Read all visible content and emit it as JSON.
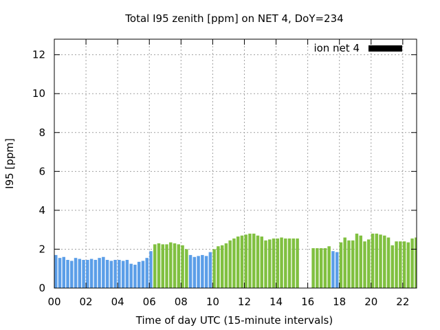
{
  "chart_data": {
    "type": "bar",
    "title": "Total I95 zenith [ppm] on NET 4, DoY=234",
    "xlabel": "Time of day UTC (15-minute intervals)",
    "ylabel": "I95 [ppm]",
    "xlim": [
      0,
      22.75
    ],
    "ylim": [
      0,
      12.8
    ],
    "x_ticks": [
      "00",
      "02",
      "04",
      "06",
      "08",
      "10",
      "12",
      "14",
      "16",
      "18",
      "20",
      "22"
    ],
    "y_ticks": [
      "0",
      "2",
      "4",
      "6",
      "8",
      "10",
      "12"
    ],
    "grid": true,
    "legend": {
      "label": "ion net 4",
      "color": "#000000",
      "position": "top-right"
    },
    "colors": {
      "blue": "#5b9ee8",
      "green": "#80c040"
    },
    "interval_hours": 0.25,
    "bars": [
      {
        "x": 0.0,
        "y": 1.7,
        "c": "blue"
      },
      {
        "x": 0.25,
        "y": 1.55,
        "c": "blue"
      },
      {
        "x": 0.5,
        "y": 1.6,
        "c": "blue"
      },
      {
        "x": 0.75,
        "y": 1.45,
        "c": "blue"
      },
      {
        "x": 1.0,
        "y": 1.4,
        "c": "blue"
      },
      {
        "x": 1.25,
        "y": 1.55,
        "c": "blue"
      },
      {
        "x": 1.5,
        "y": 1.5,
        "c": "blue"
      },
      {
        "x": 1.75,
        "y": 1.45,
        "c": "blue"
      },
      {
        "x": 2.0,
        "y": 1.45,
        "c": "blue"
      },
      {
        "x": 2.25,
        "y": 1.5,
        "c": "blue"
      },
      {
        "x": 2.5,
        "y": 1.45,
        "c": "blue"
      },
      {
        "x": 2.75,
        "y": 1.55,
        "c": "blue"
      },
      {
        "x": 3.0,
        "y": 1.6,
        "c": "blue"
      },
      {
        "x": 3.25,
        "y": 1.45,
        "c": "blue"
      },
      {
        "x": 3.5,
        "y": 1.4,
        "c": "blue"
      },
      {
        "x": 3.75,
        "y": 1.45,
        "c": "blue"
      },
      {
        "x": 4.0,
        "y": 1.45,
        "c": "blue"
      },
      {
        "x": 4.25,
        "y": 1.4,
        "c": "blue"
      },
      {
        "x": 4.5,
        "y": 1.45,
        "c": "blue"
      },
      {
        "x": 4.75,
        "y": 1.25,
        "c": "blue"
      },
      {
        "x": 5.0,
        "y": 1.2,
        "c": "blue"
      },
      {
        "x": 5.25,
        "y": 1.35,
        "c": "blue"
      },
      {
        "x": 5.5,
        "y": 1.4,
        "c": "blue"
      },
      {
        "x": 5.75,
        "y": 1.55,
        "c": "blue"
      },
      {
        "x": 6.0,
        "y": 1.9,
        "c": "blue"
      },
      {
        "x": 6.25,
        "y": 2.25,
        "c": "green"
      },
      {
        "x": 6.5,
        "y": 2.3,
        "c": "green"
      },
      {
        "x": 6.75,
        "y": 2.25,
        "c": "green"
      },
      {
        "x": 7.0,
        "y": 2.25,
        "c": "green"
      },
      {
        "x": 7.25,
        "y": 2.35,
        "c": "green"
      },
      {
        "x": 7.5,
        "y": 2.3,
        "c": "green"
      },
      {
        "x": 7.75,
        "y": 2.25,
        "c": "green"
      },
      {
        "x": 8.0,
        "y": 2.2,
        "c": "green"
      },
      {
        "x": 8.25,
        "y": 2.0,
        "c": "green"
      },
      {
        "x": 8.5,
        "y": 1.7,
        "c": "blue"
      },
      {
        "x": 8.75,
        "y": 1.6,
        "c": "blue"
      },
      {
        "x": 9.0,
        "y": 1.65,
        "c": "blue"
      },
      {
        "x": 9.25,
        "y": 1.7,
        "c": "blue"
      },
      {
        "x": 9.5,
        "y": 1.65,
        "c": "blue"
      },
      {
        "x": 9.75,
        "y": 1.85,
        "c": "blue"
      },
      {
        "x": 10.0,
        "y": 2.0,
        "c": "green"
      },
      {
        "x": 10.25,
        "y": 2.15,
        "c": "green"
      },
      {
        "x": 10.5,
        "y": 2.2,
        "c": "green"
      },
      {
        "x": 10.75,
        "y": 2.3,
        "c": "green"
      },
      {
        "x": 11.0,
        "y": 2.45,
        "c": "green"
      },
      {
        "x": 11.25,
        "y": 2.55,
        "c": "green"
      },
      {
        "x": 11.5,
        "y": 2.65,
        "c": "green"
      },
      {
        "x": 11.75,
        "y": 2.7,
        "c": "green"
      },
      {
        "x": 12.0,
        "y": 2.75,
        "c": "green"
      },
      {
        "x": 12.25,
        "y": 2.8,
        "c": "green"
      },
      {
        "x": 12.5,
        "y": 2.8,
        "c": "green"
      },
      {
        "x": 12.75,
        "y": 2.7,
        "c": "green"
      },
      {
        "x": 13.0,
        "y": 2.65,
        "c": "green"
      },
      {
        "x": 13.25,
        "y": 2.45,
        "c": "green"
      },
      {
        "x": 13.5,
        "y": 2.5,
        "c": "green"
      },
      {
        "x": 13.75,
        "y": 2.55,
        "c": "green"
      },
      {
        "x": 14.0,
        "y": 2.55,
        "c": "green"
      },
      {
        "x": 14.25,
        "y": 2.6,
        "c": "green"
      },
      {
        "x": 14.5,
        "y": 2.55,
        "c": "green"
      },
      {
        "x": 14.75,
        "y": 2.55,
        "c": "green"
      },
      {
        "x": 15.0,
        "y": 2.55,
        "c": "green"
      },
      {
        "x": 15.25,
        "y": 2.55,
        "c": "green"
      },
      {
        "x": 16.25,
        "y": 2.05,
        "c": "green"
      },
      {
        "x": 16.5,
        "y": 2.05,
        "c": "green"
      },
      {
        "x": 16.75,
        "y": 2.05,
        "c": "green"
      },
      {
        "x": 17.0,
        "y": 2.05,
        "c": "green"
      },
      {
        "x": 17.25,
        "y": 2.15,
        "c": "green"
      },
      {
        "x": 17.5,
        "y": 1.9,
        "c": "blue"
      },
      {
        "x": 17.75,
        "y": 1.85,
        "c": "blue"
      },
      {
        "x": 18.0,
        "y": 2.35,
        "c": "green"
      },
      {
        "x": 18.25,
        "y": 2.6,
        "c": "green"
      },
      {
        "x": 18.5,
        "y": 2.45,
        "c": "green"
      },
      {
        "x": 18.75,
        "y": 2.45,
        "c": "green"
      },
      {
        "x": 19.0,
        "y": 2.8,
        "c": "green"
      },
      {
        "x": 19.25,
        "y": 2.7,
        "c": "green"
      },
      {
        "x": 19.5,
        "y": 2.4,
        "c": "green"
      },
      {
        "x": 19.75,
        "y": 2.5,
        "c": "green"
      },
      {
        "x": 20.0,
        "y": 2.8,
        "c": "green"
      },
      {
        "x": 20.25,
        "y": 2.8,
        "c": "green"
      },
      {
        "x": 20.5,
        "y": 2.75,
        "c": "green"
      },
      {
        "x": 20.75,
        "y": 2.7,
        "c": "green"
      },
      {
        "x": 21.0,
        "y": 2.6,
        "c": "green"
      },
      {
        "x": 21.25,
        "y": 2.2,
        "c": "green"
      },
      {
        "x": 21.5,
        "y": 2.4,
        "c": "green"
      },
      {
        "x": 21.75,
        "y": 2.4,
        "c": "green"
      },
      {
        "x": 22.0,
        "y": 2.4,
        "c": "green"
      },
      {
        "x": 22.25,
        "y": 2.35,
        "c": "green"
      },
      {
        "x": 22.5,
        "y": 2.55,
        "c": "green"
      },
      {
        "x": 22.75,
        "y": 2.6,
        "c": "green"
      }
    ]
  }
}
